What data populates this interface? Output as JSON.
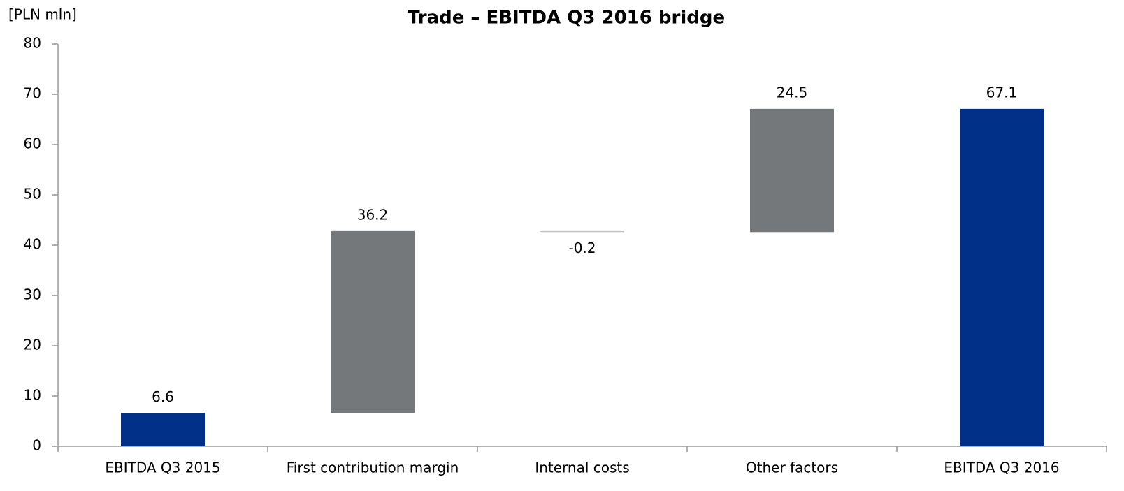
{
  "chart_data": {
    "type": "waterfall",
    "title": "Trade – EBITDA Q3 2016 bridge",
    "y_label": "[PLN mln]",
    "categories": [
      "EBITDA Q3 2015",
      "First contribution margin",
      "Internal costs",
      "Other factors",
      "EBITDA Q3 2016"
    ],
    "values": [
      6.6,
      36.2,
      -0.2,
      24.5,
      67.1
    ],
    "totals": [
      true,
      false,
      false,
      false,
      true
    ],
    "total_color": "#003087",
    "increase_color": "#75787b",
    "decrease_color": "#c4c4c4",
    "ylim": [
      0,
      80
    ],
    "yticks": [
      0,
      10,
      20,
      30,
      40,
      50,
      60,
      70,
      80
    ],
    "grid": false
  }
}
